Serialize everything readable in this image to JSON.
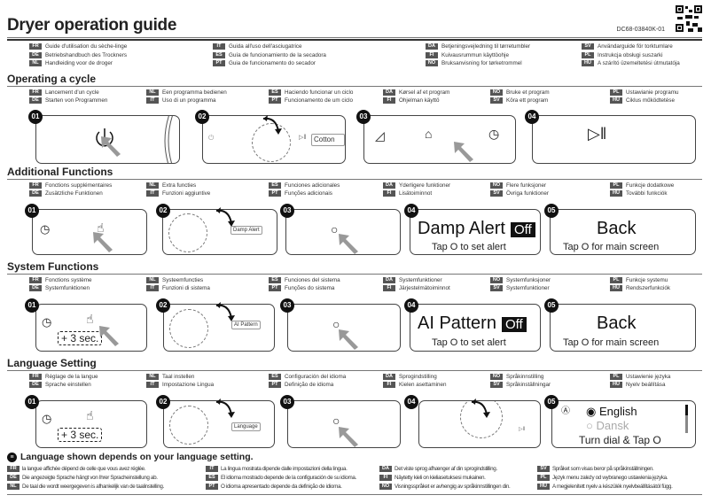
{
  "header": {
    "title": "Dryer operation guide",
    "doc_id": "DC68-03840K-01"
  },
  "guide_titles": [
    [
      {
        "code": "FR",
        "text": "Guide d'utilisation du sèche-linge"
      },
      {
        "code": "DE",
        "text": "Betriebshandbuch des Trockners"
      },
      {
        "code": "NL",
        "text": "Handleiding voor de droger"
      }
    ],
    [
      {
        "code": "IT",
        "text": "Guida all'uso dell'asciugatrice"
      },
      {
        "code": "ES",
        "text": "Guía de funcionamiento de la secadora"
      },
      {
        "code": "PT",
        "text": "Guia de funcionamento do secador"
      }
    ],
    [
      {
        "code": "DA",
        "text": "Betjeningsvejledning til tørretumbler"
      },
      {
        "code": "FI",
        "text": "Kuivausrummun käyttöohje"
      },
      {
        "code": "NO",
        "text": "Bruksanvisning for tørketrommel"
      }
    ],
    [
      {
        "code": "SV",
        "text": "Användarguide för torktumlare"
      },
      {
        "code": "PL",
        "text": "Instrukcja obsługi suszarki"
      },
      {
        "code": "HU",
        "text": "A szárító üzemeltetési útmutatója"
      }
    ]
  ],
  "sections": [
    {
      "title": "Operating a cycle",
      "langs": [
        [
          {
            "code": "FR",
            "text": "Lancement d'un cycle"
          },
          {
            "code": "DE",
            "text": "Starten von Programmen"
          }
        ],
        [
          {
            "code": "NL",
            "text": "Een programma bedienen"
          },
          {
            "code": "IT",
            "text": "Uso di un programma"
          }
        ],
        [
          {
            "code": "ES",
            "text": "Haciendo funcionar un ciclo"
          },
          {
            "code": "PT",
            "text": "Funcionamento de um ciclo"
          }
        ],
        [
          {
            "code": "DA",
            "text": "Kørsel af et program"
          },
          {
            "code": "FI",
            "text": "Ohjelman käyttö"
          }
        ],
        [
          {
            "code": "NO",
            "text": "Bruke et program"
          },
          {
            "code": "SV",
            "text": "Köra ett program"
          }
        ],
        [
          {
            "code": "PL",
            "text": "Ustawianie programu"
          },
          {
            "code": "HU",
            "text": "Ciklus működtetése"
          }
        ]
      ]
    },
    {
      "title": "Additional Functions",
      "langs": [
        [
          {
            "code": "FR",
            "text": "Fonctions supplémentaires"
          },
          {
            "code": "DE",
            "text": "Zusätzliche Funktionen"
          }
        ],
        [
          {
            "code": "NL",
            "text": "Extra functies"
          },
          {
            "code": "IT",
            "text": "Funzioni aggiuntive"
          }
        ],
        [
          {
            "code": "ES",
            "text": "Funciones adicionales"
          },
          {
            "code": "PT",
            "text": "Funções adicionais"
          }
        ],
        [
          {
            "code": "DA",
            "text": "Yderligere funktioner"
          },
          {
            "code": "FI",
            "text": "Lisätoiminnot"
          }
        ],
        [
          {
            "code": "NO",
            "text": "Flere funksjoner"
          },
          {
            "code": "SV",
            "text": "Övriga funktioner"
          }
        ],
        [
          {
            "code": "PL",
            "text": "Funkcje dodatkowe"
          },
          {
            "code": "HU",
            "text": "További funkciók"
          }
        ]
      ]
    },
    {
      "title": "System Functions",
      "langs": [
        [
          {
            "code": "FR",
            "text": "Fonctions système"
          },
          {
            "code": "DE",
            "text": "Systemfunktionen"
          }
        ],
        [
          {
            "code": "NL",
            "text": "Systeemfuncties"
          },
          {
            "code": "IT",
            "text": "Funzioni di sistema"
          }
        ],
        [
          {
            "code": "ES",
            "text": "Funciones del sistema"
          },
          {
            "code": "PT",
            "text": "Funções do sistema"
          }
        ],
        [
          {
            "code": "DA",
            "text": "Systemfunktioner"
          },
          {
            "code": "FI",
            "text": "Järjestelmätoiminnot"
          }
        ],
        [
          {
            "code": "NO",
            "text": "Systemfunksjoner"
          },
          {
            "code": "SV",
            "text": "Systemfunktioner"
          }
        ],
        [
          {
            "code": "PL",
            "text": "Funkcje systemu"
          },
          {
            "code": "HU",
            "text": "Rendszerfunkciók"
          }
        ]
      ]
    },
    {
      "title": "Language Setting",
      "langs": [
        [
          {
            "code": "FR",
            "text": "Réglage de la langue"
          },
          {
            "code": "DE",
            "text": "Sprache einstellen"
          }
        ],
        [
          {
            "code": "NL",
            "text": "Taal instellen"
          },
          {
            "code": "IT",
            "text": "Impostazione Lingua"
          }
        ],
        [
          {
            "code": "ES",
            "text": "Configuración del idioma"
          },
          {
            "code": "PT",
            "text": "Definição de idioma"
          }
        ],
        [
          {
            "code": "DA",
            "text": "Sprogindstilling"
          },
          {
            "code": "FI",
            "text": "Kielen asettaminen"
          }
        ],
        [
          {
            "code": "NO",
            "text": "Språkinnstilling"
          },
          {
            "code": "SV",
            "text": "Språkinställningar"
          }
        ],
        [
          {
            "code": "PL",
            "text": "Ustawienie języka"
          },
          {
            "code": "HU",
            "text": "Nyelv beállítása"
          }
        ]
      ]
    }
  ],
  "note": {
    "title": "Language shown depends on your language setting.",
    "langs": [
      [
        {
          "code": "FR",
          "text": "la langue affichée dépend de celle que vous avez réglée."
        },
        {
          "code": "DE",
          "text": "Die angezeigte Sprache hängt von Ihrer Spracheinstellung ab."
        },
        {
          "code": "NL",
          "text": "De taal die wordt weergegeven is afhankelijk van de taalinstelling."
        }
      ],
      [
        {
          "code": "IT",
          "text": "La lingua mostrata dipende dalle impostazioni della lingua."
        },
        {
          "code": "ES",
          "text": "El idioma mostrado depende de la configuración de su idioma."
        },
        {
          "code": "PT",
          "text": "O idioma apresentado depende da definição de idioma."
        }
      ],
      [
        {
          "code": "DA",
          "text": "Det viste sprog afhænger af din sprogindstilling."
        },
        {
          "code": "FI",
          "text": "Näytetty kieli on kieliasetuksesi mukainen."
        },
        {
          "code": "NO",
          "text": "Visningsspråket er avhengig av språkinnstillingen din."
        }
      ],
      [
        {
          "code": "SV",
          "text": "Språket som visas beror på språkinställningen."
        },
        {
          "code": "PL",
          "text": "Język menu zależy od wybranego ustawienia języka."
        },
        {
          "code": "HU",
          "text": "A megjelenített nyelv a készülék nyelvbeállításától függ."
        }
      ]
    ]
  },
  "steps": [
    "01",
    "02",
    "03",
    "04",
    "05"
  ],
  "panels": {
    "cotton": "Cotton",
    "damp_alert": "Damp Alert",
    "off": "Off",
    "tap_alert": "Tap O to set alert",
    "back": "Back",
    "tap_main": "Tap O for main screen",
    "ai_pattern": "AI Pattern",
    "plus3": "+ 3 sec.",
    "mini_damp": "Damp Alert",
    "mini_ai": "AI Pattern",
    "mini_language": "Language",
    "english": "English",
    "dansk": "Dansk",
    "turn_dial": "Turn dial & Tap O"
  },
  "colors": {
    "code_badge": "#555555",
    "step_badge": "#111111",
    "pointer": "#999999"
  }
}
